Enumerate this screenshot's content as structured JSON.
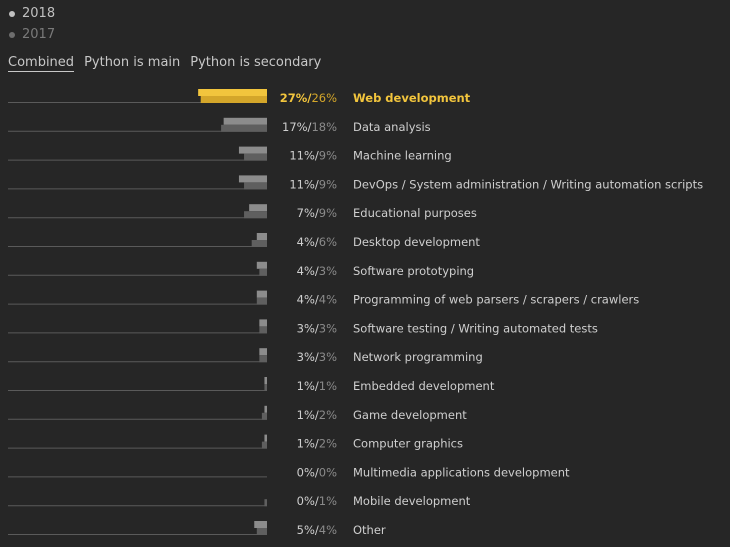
{
  "legend": {
    "items": [
      {
        "label": "2018",
        "color": "#c0c0c0"
      },
      {
        "label": "2017",
        "color": "#6e6e6e"
      }
    ]
  },
  "tabs": [
    {
      "label": "Combined",
      "active": true
    },
    {
      "label": "Python is main",
      "active": false
    },
    {
      "label": "Python is secondary",
      "active": false
    }
  ],
  "colors": {
    "highlight": "#f2c53d",
    "highlight_dark": "#d4a62a",
    "bar_2018": "#8c8c8c",
    "bar_2017": "#5f5f5f",
    "baseline": "#5a5a5a",
    "text": "#cfcfcf",
    "secondary_text": "#8a8a8a"
  },
  "chart_data": {
    "type": "bar",
    "orientation": "horizontal",
    "unit": "%",
    "categories": [
      "Web development",
      "Data analysis",
      "Machine learning",
      "DevOps / System administration / Writing automation scripts",
      "Educational purposes",
      "Desktop development",
      "Software prototyping",
      "Programming of web parsers / scrapers / crawlers",
      "Software testing / Writing automated tests",
      "Network programming",
      "Embedded development",
      "Game development",
      "Computer graphics",
      "Multimedia applications development",
      "Mobile development",
      "Other"
    ],
    "series": [
      {
        "name": "2018",
        "values": [
          27,
          17,
          11,
          11,
          7,
          4,
          4,
          4,
          3,
          3,
          1,
          1,
          1,
          0,
          0,
          5
        ]
      },
      {
        "name": "2017",
        "values": [
          26,
          18,
          9,
          9,
          9,
          6,
          3,
          4,
          3,
          3,
          1,
          2,
          2,
          0,
          1,
          4
        ]
      }
    ],
    "highlighted_category": "Web development"
  }
}
